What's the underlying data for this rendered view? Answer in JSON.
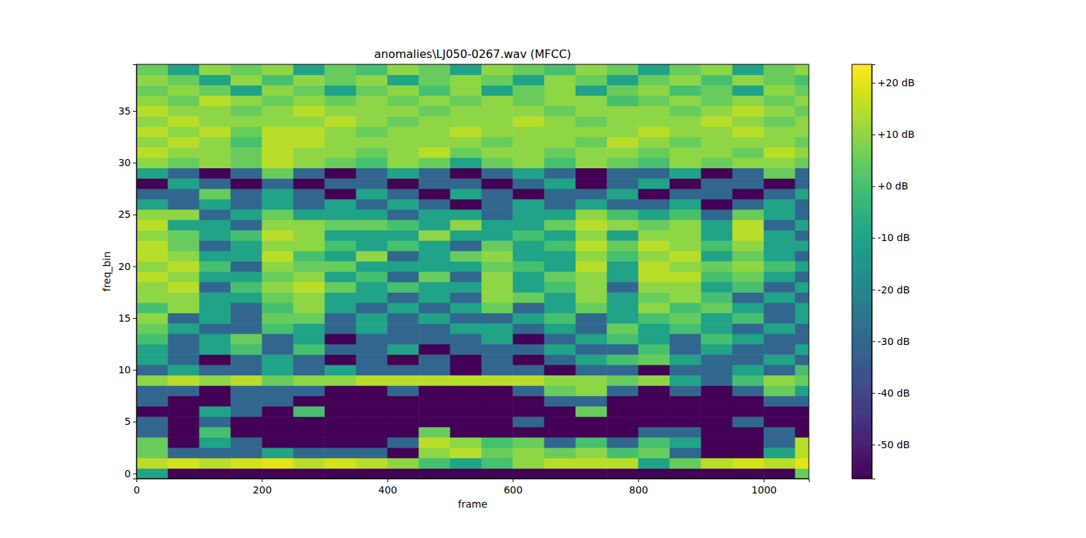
{
  "chart_data": {
    "type": "heatmap",
    "title": "anomalies\\LJ050-0267.wav (MFCC)",
    "xlabel": "frame",
    "ylabel": "freq_bin",
    "xlim": [
      0,
      1072
    ],
    "ylim": [
      -0.5,
      39.5
    ],
    "xticks": [
      0,
      200,
      400,
      600,
      800,
      1000
    ],
    "yticks": [
      0,
      5,
      10,
      15,
      20,
      25,
      30,
      35
    ],
    "x": [
      0,
      50,
      100,
      150,
      200,
      250,
      300,
      350,
      400,
      450,
      500,
      550,
      600,
      650,
      700,
      750,
      800,
      850,
      900,
      950,
      1000,
      1050,
      1072
    ],
    "y": [
      0,
      1,
      2,
      3,
      4,
      5,
      6,
      7,
      8,
      9,
      10,
      11,
      12,
      13,
      14,
      15,
      16,
      17,
      18,
      19,
      20,
      21,
      22,
      23,
      24,
      25,
      26,
      27,
      28,
      29,
      30,
      31,
      32,
      33,
      34,
      35,
      36,
      37,
      38,
      39
    ],
    "zlim": [
      -56.6,
      23.6
    ],
    "zticks": [
      {
        "value": -50,
        "label": "-50 dB"
      },
      {
        "value": -40,
        "label": "-40 dB"
      },
      {
        "value": -30,
        "label": "-30 dB"
      },
      {
        "value": -20,
        "label": "-20 dB"
      },
      {
        "value": -10,
        "label": "-10 dB"
      },
      {
        "value": 0,
        "label": "+0 dB"
      },
      {
        "value": 10,
        "label": "+10 dB"
      },
      {
        "value": 20,
        "label": "+20 dB"
      }
    ],
    "values": [
      [
        -10,
        -56,
        -56,
        -56,
        -56,
        -56,
        -56,
        -56,
        -56,
        -56,
        -56,
        -56,
        -56,
        -56,
        -56,
        -56,
        -56,
        -56,
        -56,
        -56,
        -56,
        5
      ],
      [
        15,
        18,
        15,
        18,
        20,
        15,
        18,
        15,
        10,
        0,
        -10,
        0,
        10,
        15,
        15,
        15,
        -10,
        5,
        15,
        18,
        15,
        20
      ],
      [
        5,
        -30,
        -30,
        -30,
        -10,
        -30,
        -30,
        -30,
        -56,
        10,
        15,
        5,
        10,
        5,
        10,
        0,
        5,
        -30,
        -56,
        -56,
        -10,
        15
      ],
      [
        5,
        -56,
        -10,
        -30,
        -56,
        -56,
        -56,
        -56,
        -30,
        15,
        10,
        0,
        5,
        -30,
        0,
        -30,
        0,
        -10,
        -56,
        -56,
        -30,
        15
      ],
      [
        -30,
        -56,
        0,
        -56,
        -56,
        -56,
        -56,
        -56,
        -56,
        5,
        -56,
        -56,
        -56,
        -56,
        -56,
        -56,
        -30,
        -30,
        -56,
        -56,
        -30,
        -56
      ],
      [
        -30,
        -56,
        -30,
        -56,
        -56,
        -56,
        -56,
        -56,
        -56,
        -56,
        -56,
        -56,
        -30,
        -56,
        -56,
        -56,
        -56,
        -56,
        -56,
        -30,
        -56,
        -56
      ],
      [
        -56,
        -56,
        -10,
        -30,
        -56,
        0,
        -56,
        -56,
        -56,
        -56,
        -56,
        -56,
        -56,
        -56,
        5,
        -56,
        -56,
        -56,
        -56,
        -56,
        -56,
        -56
      ],
      [
        -30,
        -56,
        -56,
        -30,
        -30,
        -56,
        -56,
        -56,
        -56,
        -56,
        -56,
        -56,
        -56,
        -30,
        -30,
        -56,
        -56,
        -56,
        -56,
        -56,
        -30,
        -30
      ],
      [
        -30,
        -30,
        -56,
        -30,
        -30,
        -30,
        -56,
        -56,
        -30,
        -56,
        -56,
        -56,
        -30,
        5,
        10,
        -30,
        -56,
        -30,
        -56,
        -30,
        5,
        -10
      ],
      [
        10,
        15,
        10,
        15,
        5,
        10,
        10,
        15,
        15,
        15,
        15,
        15,
        15,
        10,
        10,
        5,
        10,
        -10,
        -30,
        0,
        10,
        5
      ],
      [
        -30,
        -10,
        -30,
        -30,
        -10,
        -30,
        -10,
        -30,
        -30,
        -30,
        -56,
        -30,
        -30,
        -56,
        -30,
        -30,
        -56,
        -30,
        -30,
        -10,
        -30,
        0
      ],
      [
        -10,
        -30,
        -56,
        -30,
        -10,
        -30,
        -56,
        -30,
        -56,
        -30,
        -56,
        -30,
        -56,
        -30,
        -10,
        0,
        5,
        -10,
        -30,
        -30,
        -10,
        -30
      ],
      [
        -10,
        -30,
        -10,
        0,
        -30,
        0,
        -30,
        -30,
        -10,
        -56,
        -30,
        -30,
        -30,
        -10,
        -30,
        -30,
        0,
        -30,
        -10,
        -30,
        -30,
        -10
      ],
      [
        0,
        -30,
        -10,
        5,
        -30,
        -10,
        -56,
        -30,
        -30,
        -30,
        -30,
        -10,
        -56,
        -30,
        -10,
        0,
        -10,
        -30,
        0,
        -10,
        -30,
        -30
      ],
      [
        5,
        -10,
        -30,
        -30,
        0,
        -10,
        -30,
        -10,
        -30,
        -30,
        -10,
        -10,
        -30,
        -10,
        -30,
        5,
        -10,
        0,
        -10,
        -30,
        -10,
        -30
      ],
      [
        10,
        -30,
        -10,
        -30,
        5,
        5,
        -30,
        -10,
        -30,
        -10,
        -30,
        -30,
        -10,
        0,
        -30,
        -10,
        0,
        5,
        -10,
        0,
        -30,
        -10
      ],
      [
        0,
        10,
        -10,
        -30,
        0,
        10,
        -10,
        -30,
        -10,
        -30,
        -10,
        5,
        -30,
        -10,
        5,
        -10,
        10,
        0,
        5,
        -10,
        -30,
        -10
      ],
      [
        10,
        10,
        -10,
        -10,
        5,
        10,
        -10,
        -10,
        -30,
        -10,
        -30,
        10,
        5,
        -10,
        10,
        -10,
        5,
        10,
        0,
        -30,
        -10,
        -30
      ],
      [
        10,
        15,
        -30,
        0,
        10,
        15,
        5,
        -10,
        0,
        -10,
        -10,
        10,
        -10,
        0,
        10,
        -30,
        10,
        10,
        -10,
        0,
        -30,
        -10
      ],
      [
        15,
        10,
        -10,
        -10,
        5,
        10,
        -10,
        0,
        -30,
        5,
        -30,
        10,
        -10,
        5,
        10,
        -10,
        15,
        15,
        0,
        5,
        -10,
        -30
      ],
      [
        10,
        15,
        0,
        -30,
        10,
        5,
        5,
        -10,
        -10,
        -10,
        -10,
        5,
        0,
        -10,
        15,
        -10,
        15,
        10,
        5,
        10,
        0,
        -10
      ],
      [
        15,
        10,
        -10,
        -10,
        15,
        0,
        -10,
        10,
        -30,
        -10,
        5,
        10,
        -10,
        -10,
        10,
        0,
        10,
        15,
        -10,
        5,
        -10,
        -30
      ],
      [
        15,
        5,
        -30,
        -10,
        10,
        10,
        0,
        -10,
        0,
        -10,
        -30,
        5,
        -10,
        0,
        15,
        5,
        15,
        10,
        0,
        10,
        -10,
        -10
      ],
      [
        10,
        5,
        -10,
        0,
        15,
        10,
        -10,
        -10,
        -10,
        10,
        -10,
        -10,
        0,
        -10,
        10,
        -10,
        10,
        10,
        -10,
        15,
        -10,
        -30
      ],
      [
        15,
        -10,
        -10,
        -30,
        10,
        10,
        5,
        5,
        0,
        -10,
        10,
        -10,
        -10,
        5,
        15,
        10,
        5,
        10,
        -10,
        15,
        -30,
        -10
      ],
      [
        10,
        10,
        -30,
        -10,
        5,
        -10,
        -10,
        -10,
        -30,
        -10,
        -10,
        -30,
        -10,
        -10,
        10,
        0,
        -10,
        0,
        -30,
        5,
        -10,
        -30
      ],
      [
        -10,
        -30,
        -10,
        -30,
        -10,
        -30,
        -10,
        -30,
        -10,
        -30,
        -56,
        -30,
        -10,
        -30,
        -10,
        -30,
        -30,
        -10,
        -56,
        -30,
        -10,
        -30
      ],
      [
        -30,
        -30,
        5,
        -30,
        -10,
        -30,
        -56,
        -10,
        -30,
        -56,
        -10,
        -30,
        -56,
        -30,
        -30,
        -10,
        -56,
        -30,
        -30,
        -56,
        -30,
        -10
      ],
      [
        -56,
        -10,
        -30,
        -56,
        -30,
        -56,
        -30,
        -30,
        -56,
        -30,
        -30,
        -56,
        -30,
        -10,
        -56,
        -30,
        -10,
        -56,
        -30,
        -30,
        -56,
        -30
      ],
      [
        -10,
        -30,
        -56,
        -30,
        5,
        -30,
        -56,
        -30,
        -10,
        -30,
        -56,
        -30,
        -10,
        -30,
        -56,
        -30,
        -30,
        -10,
        -56,
        -30,
        5,
        -30
      ],
      [
        10,
        5,
        10,
        5,
        15,
        10,
        5,
        0,
        10,
        5,
        -10,
        5,
        10,
        0,
        10,
        5,
        0,
        10,
        5,
        10,
        10,
        5
      ],
      [
        15,
        10,
        10,
        5,
        15,
        10,
        10,
        5,
        10,
        15,
        5,
        10,
        10,
        5,
        10,
        10,
        5,
        10,
        10,
        5,
        15,
        10
      ],
      [
        10,
        15,
        10,
        0,
        15,
        15,
        10,
        10,
        10,
        10,
        10,
        5,
        10,
        10,
        5,
        15,
        10,
        5,
        10,
        10,
        10,
        5
      ],
      [
        15,
        10,
        15,
        5,
        15,
        15,
        10,
        5,
        10,
        10,
        15,
        10,
        10,
        10,
        10,
        10,
        15,
        10,
        10,
        15,
        10,
        10
      ],
      [
        10,
        15,
        10,
        10,
        10,
        10,
        15,
        10,
        5,
        10,
        10,
        10,
        15,
        10,
        5,
        10,
        10,
        10,
        15,
        10,
        5,
        10
      ],
      [
        15,
        10,
        10,
        5,
        10,
        15,
        10,
        10,
        10,
        5,
        10,
        10,
        10,
        5,
        10,
        10,
        10,
        5,
        10,
        15,
        10,
        5
      ],
      [
        10,
        5,
        15,
        10,
        5,
        10,
        5,
        10,
        5,
        10,
        5,
        10,
        5,
        10,
        10,
        0,
        5,
        10,
        5,
        10,
        5,
        10
      ],
      [
        5,
        10,
        5,
        -10,
        10,
        5,
        -10,
        5,
        10,
        0,
        10,
        -10,
        5,
        10,
        -10,
        5,
        10,
        0,
        5,
        -10,
        10,
        5
      ],
      [
        10,
        5,
        -10,
        10,
        0,
        10,
        5,
        10,
        -10,
        5,
        10,
        5,
        -10,
        10,
        5,
        -10,
        5,
        10,
        0,
        10,
        5,
        0
      ],
      [
        5,
        -10,
        10,
        5,
        10,
        -10,
        5,
        0,
        10,
        5,
        -10,
        10,
        5,
        0,
        10,
        5,
        -10,
        5,
        10,
        -10,
        5,
        10
      ]
    ]
  }
}
